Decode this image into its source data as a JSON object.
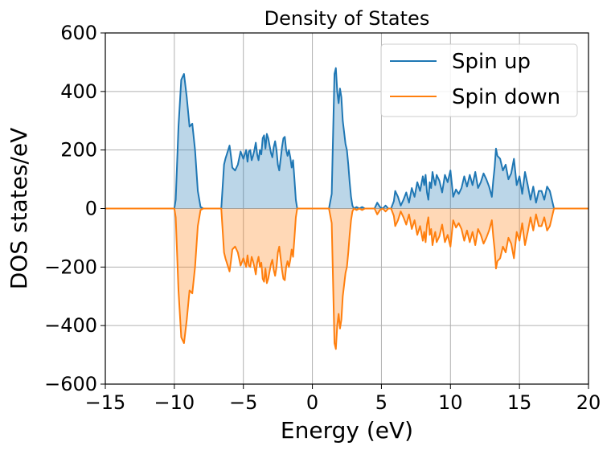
{
  "chart_data": {
    "type": "area",
    "title": "Density of States",
    "xlabel": "Energy (eV)",
    "ylabel": "DOS states/eV",
    "xlim": [
      -15,
      20
    ],
    "ylim": [
      -600,
      600
    ],
    "xticks": [
      -15,
      -10,
      -5,
      0,
      5,
      10,
      15,
      20
    ],
    "xtick_labels": [
      "−15",
      "−10",
      "−5",
      "0",
      "5",
      "10",
      "15",
      "20"
    ],
    "yticks": [
      -600,
      -400,
      -200,
      0,
      200,
      400,
      600
    ],
    "ytick_labels": [
      "−600",
      "−400",
      "−200",
      "0",
      "200",
      "400",
      "600"
    ],
    "grid": true,
    "legend_position": "top-right",
    "series": [
      {
        "name": "Spin up",
        "color": "#1f77b4",
        "fill": "#1f77b4",
        "x": [
          -15,
          -10.0,
          -9.9,
          -9.7,
          -9.5,
          -9.3,
          -9.1,
          -8.9,
          -8.7,
          -8.5,
          -8.3,
          -8.1,
          -7.9,
          -6.6,
          -6.4,
          -6.3,
          -6.1,
          -6.0,
          -5.9,
          -5.8,
          -5.6,
          -5.4,
          -5.2,
          -5.0,
          -4.8,
          -4.7,
          -4.6,
          -4.5,
          -4.4,
          -4.3,
          -4.2,
          -4.1,
          -4.0,
          -3.9,
          -3.8,
          -3.7,
          -3.6,
          -3.5,
          -3.4,
          -3.3,
          -3.2,
          -3.1,
          -3.0,
          -2.9,
          -2.8,
          -2.7,
          -2.6,
          -2.5,
          -2.4,
          -2.3,
          -2.2,
          -2.1,
          -2.0,
          -1.9,
          -1.8,
          -1.7,
          -1.6,
          -1.5,
          -1.4,
          -1.3,
          -1.2,
          -1.1,
          1.2,
          1.4,
          1.6,
          1.7,
          1.8,
          1.9,
          2.0,
          2.1,
          2.2,
          2.3,
          2.4,
          2.5,
          2.6,
          2.7,
          2.8,
          2.9,
          3.0,
          3.2,
          3.4,
          3.6,
          3.8,
          4.0,
          4.5,
          4.7,
          4.9,
          5.1,
          5.3,
          5.5,
          5.7,
          5.9,
          6.0,
          6.2,
          6.4,
          6.6,
          6.8,
          7.0,
          7.2,
          7.4,
          7.6,
          7.8,
          8.0,
          8.1,
          8.2,
          8.3,
          8.4,
          8.5,
          8.6,
          8.7,
          8.8,
          8.9,
          9.0,
          9.2,
          9.4,
          9.6,
          9.8,
          10.0,
          10.2,
          10.4,
          10.6,
          10.8,
          11.0,
          11.2,
          11.4,
          11.6,
          11.8,
          12.0,
          12.2,
          12.4,
          12.6,
          12.8,
          13.0,
          13.1,
          13.2,
          13.3,
          13.4,
          13.6,
          13.8,
          14.0,
          14.2,
          14.4,
          14.6,
          14.8,
          15.0,
          15.2,
          15.4,
          15.6,
          15.8,
          16.0,
          16.2,
          16.4,
          16.6,
          16.8,
          17.0,
          17.2,
          17.5,
          20
        ],
        "values": [
          0,
          0,
          30,
          280,
          440,
          460,
          380,
          280,
          290,
          200,
          60,
          5,
          0,
          0,
          150,
          170,
          200,
          215,
          180,
          140,
          130,
          150,
          195,
          170,
          200,
          160,
          195,
          200,
          165,
          180,
          200,
          225,
          185,
          165,
          200,
          185,
          240,
          250,
          205,
          255,
          240,
          215,
          190,
          175,
          210,
          230,
          200,
          150,
          130,
          170,
          210,
          240,
          245,
          200,
          180,
          200,
          175,
          140,
          165,
          100,
          30,
          0,
          0,
          50,
          460,
          480,
          400,
          360,
          410,
          380,
          300,
          260,
          220,
          200,
          150,
          90,
          40,
          10,
          0,
          5,
          0,
          5,
          0,
          0,
          0,
          20,
          5,
          0,
          10,
          0,
          0,
          25,
          60,
          40,
          10,
          30,
          55,
          20,
          70,
          40,
          90,
          60,
          110,
          80,
          115,
          55,
          30,
          90,
          70,
          125,
          100,
          80,
          115,
          95,
          55,
          115,
          90,
          130,
          40,
          65,
          50,
          70,
          110,
          75,
          115,
          80,
          125,
          70,
          90,
          120,
          100,
          75,
          40,
          95,
          140,
          205,
          180,
          170,
          130,
          150,
          100,
          120,
          170,
          80,
          110,
          50,
          125,
          80,
          30,
          75,
          20,
          60,
          60,
          30,
          75,
          60,
          0,
          0
        ]
      },
      {
        "name": "Spin down",
        "color": "#ff7f0e",
        "fill": "#ff7f0e",
        "x": [
          -15,
          -10.0,
          -9.9,
          -9.7,
          -9.5,
          -9.3,
          -9.1,
          -8.9,
          -8.7,
          -8.5,
          -8.3,
          -8.1,
          -7.9,
          -6.6,
          -6.4,
          -6.3,
          -6.1,
          -6.0,
          -5.9,
          -5.8,
          -5.6,
          -5.4,
          -5.2,
          -5.0,
          -4.8,
          -4.7,
          -4.6,
          -4.5,
          -4.4,
          -4.3,
          -4.2,
          -4.1,
          -4.0,
          -3.9,
          -3.8,
          -3.7,
          -3.6,
          -3.5,
          -3.4,
          -3.3,
          -3.2,
          -3.1,
          -3.0,
          -2.9,
          -2.8,
          -2.7,
          -2.6,
          -2.5,
          -2.4,
          -2.3,
          -2.2,
          -2.1,
          -2.0,
          -1.9,
          -1.8,
          -1.7,
          -1.6,
          -1.5,
          -1.4,
          -1.3,
          -1.2,
          -1.1,
          1.2,
          1.4,
          1.6,
          1.7,
          1.8,
          1.9,
          2.0,
          2.1,
          2.2,
          2.3,
          2.4,
          2.5,
          2.6,
          2.7,
          2.8,
          2.9,
          3.0,
          3.2,
          3.4,
          3.6,
          3.8,
          4.0,
          4.5,
          4.7,
          4.9,
          5.1,
          5.3,
          5.5,
          5.7,
          5.9,
          6.0,
          6.2,
          6.4,
          6.6,
          6.8,
          7.0,
          7.2,
          7.4,
          7.6,
          7.8,
          8.0,
          8.1,
          8.2,
          8.3,
          8.4,
          8.5,
          8.6,
          8.7,
          8.8,
          8.9,
          9.0,
          9.2,
          9.4,
          9.6,
          9.8,
          10.0,
          10.2,
          10.4,
          10.6,
          10.8,
          11.0,
          11.2,
          11.4,
          11.6,
          11.8,
          12.0,
          12.2,
          12.4,
          12.6,
          12.8,
          13.0,
          13.1,
          13.2,
          13.3,
          13.4,
          13.6,
          13.8,
          14.0,
          14.2,
          14.4,
          14.6,
          14.8,
          15.0,
          15.2,
          15.4,
          15.6,
          15.8,
          16.0,
          16.2,
          16.4,
          16.6,
          16.8,
          17.0,
          17.2,
          17.5,
          20
        ],
        "values": [
          0,
          0,
          -30,
          -280,
          -440,
          -460,
          -380,
          -280,
          -290,
          -200,
          -60,
          -5,
          0,
          0,
          -150,
          -170,
          -200,
          -215,
          -180,
          -140,
          -130,
          -150,
          -195,
          -170,
          -200,
          -160,
          -195,
          -200,
          -165,
          -180,
          -200,
          -225,
          -185,
          -165,
          -200,
          -185,
          -240,
          -250,
          -205,
          -255,
          -240,
          -215,
          -190,
          -175,
          -210,
          -230,
          -200,
          -150,
          -130,
          -170,
          -210,
          -240,
          -245,
          -200,
          -180,
          -200,
          -175,
          -140,
          -165,
          -100,
          -30,
          0,
          0,
          -50,
          -460,
          -480,
          -400,
          -360,
          -410,
          -380,
          -300,
          -260,
          -220,
          -200,
          -150,
          -90,
          -40,
          -10,
          0,
          -5,
          0,
          -5,
          0,
          0,
          0,
          -20,
          -5,
          0,
          -10,
          0,
          0,
          -25,
          -60,
          -40,
          -10,
          -30,
          -55,
          -20,
          -70,
          -40,
          -90,
          -60,
          -110,
          -80,
          -115,
          -55,
          -30,
          -90,
          -70,
          -125,
          -100,
          -80,
          -115,
          -95,
          -55,
          -115,
          -90,
          -130,
          -40,
          -65,
          -50,
          -70,
          -110,
          -75,
          -115,
          -80,
          -125,
          -70,
          -90,
          -120,
          -100,
          -75,
          -40,
          -95,
          -140,
          -205,
          -180,
          -170,
          -130,
          -150,
          -100,
          -120,
          -170,
          -80,
          -110,
          -50,
          -125,
          -80,
          -30,
          -75,
          -20,
          -60,
          -60,
          -30,
          -75,
          -60,
          0,
          0
        ]
      }
    ]
  }
}
